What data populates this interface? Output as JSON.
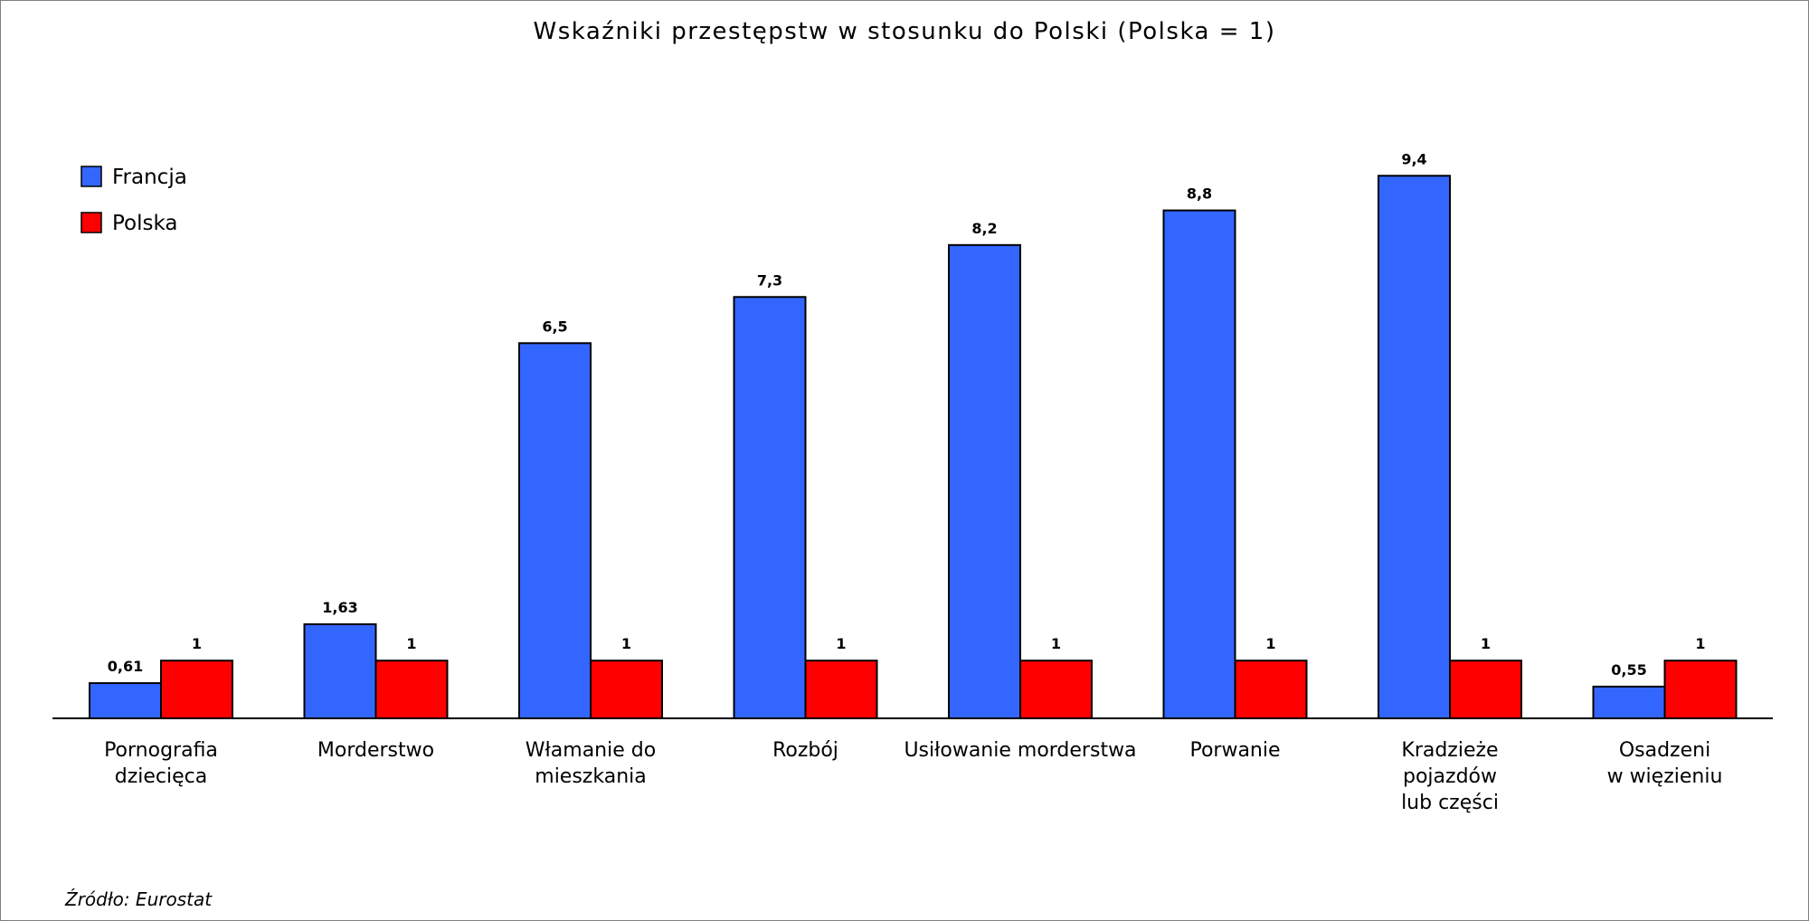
{
  "chart_data": {
    "type": "bar",
    "title": "Wskaźniki przestępstw w stosunku do Polski (Polska = 1)",
    "xlabel": "",
    "ylabel": "",
    "ylim": [
      0,
      10
    ],
    "grid": false,
    "legend_position": "top-left",
    "categories": [
      [
        "Pornografia",
        "dziecięca"
      ],
      [
        "Morderstwo"
      ],
      [
        "Włamanie do",
        "mieszkania"
      ],
      [
        "Rozbój"
      ],
      [
        "Usiłowanie morderstwa"
      ],
      [
        "Porwanie"
      ],
      [
        "Kradzieże",
        "pojazdów",
        "lub części"
      ],
      [
        "Osadzeni",
        "w więzieniu"
      ]
    ],
    "series": [
      {
        "name": "Francja",
        "color": "#3366FF",
        "values": [
          0.61,
          1.63,
          6.5,
          7.3,
          8.2,
          8.8,
          9.4,
          0.55
        ],
        "labels": [
          "0,61",
          "1,63",
          "6,5",
          "7,3",
          "8,2",
          "8,8",
          "9,4",
          "0,55"
        ]
      },
      {
        "name": "Polska",
        "color": "#FF0000",
        "values": [
          1,
          1,
          1,
          1,
          1,
          1,
          1,
          1
        ],
        "labels": [
          "1",
          "1",
          "1",
          "1",
          "1",
          "1",
          "1",
          "1"
        ]
      }
    ],
    "source": "Źródło: Eurostat"
  }
}
